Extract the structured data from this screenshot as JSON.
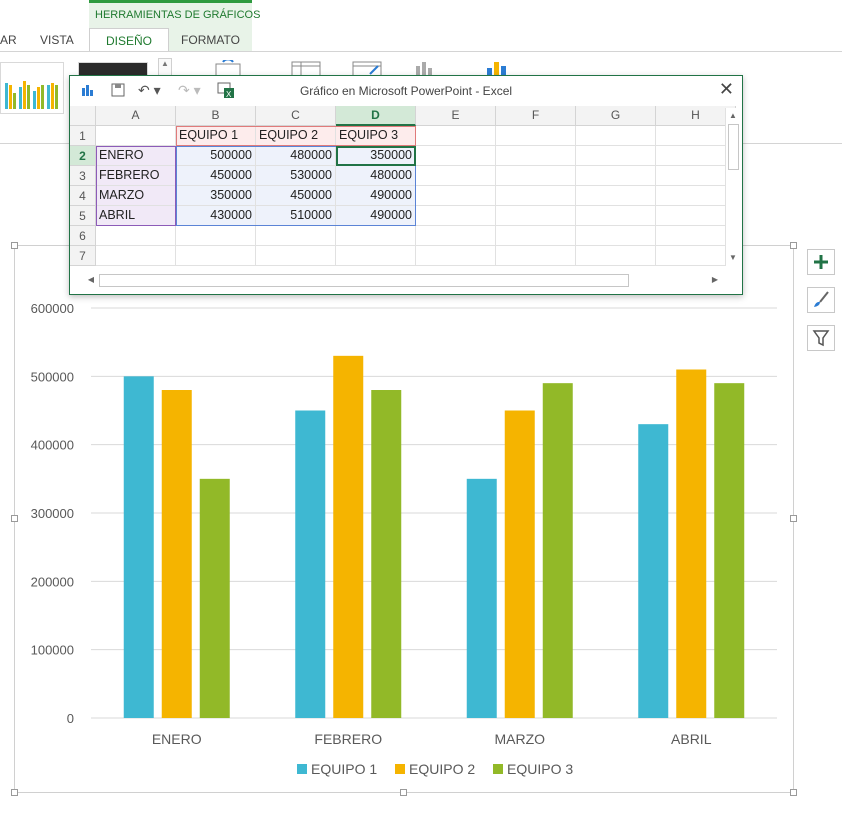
{
  "ribbon": {
    "tools_banner": "HERRAMIENTAS DE GRÁFICOS",
    "tabs": [
      {
        "label": "AR"
      },
      {
        "label": "VISTA"
      },
      {
        "label": "DISEÑO"
      },
      {
        "label": "FORMATO"
      }
    ]
  },
  "excel": {
    "title": "Gráfico en Microsoft PowerPoint - Excel",
    "close_label": "✕",
    "columns": [
      "A",
      "B",
      "C",
      "D",
      "E",
      "F",
      "G",
      "H"
    ],
    "rows": [
      "1",
      "2",
      "3",
      "4",
      "5",
      "6",
      "7"
    ],
    "selected_column": "D",
    "selected_row": "2",
    "cells": [
      [
        "",
        "EQUIPO 1",
        "EQUIPO 2",
        "EQUIPO 3"
      ],
      [
        "ENERO",
        "500000",
        "480000",
        "350000"
      ],
      [
        "FEBRERO",
        "450000",
        "530000",
        "480000"
      ],
      [
        "MARZO",
        "350000",
        "450000",
        "490000"
      ],
      [
        "ABRIL",
        "430000",
        "510000",
        "490000"
      ]
    ]
  },
  "chart_data": {
    "type": "bar",
    "categories": [
      "ENERO",
      "FEBRERO",
      "MARZO",
      "ABRIL"
    ],
    "series": [
      {
        "name": "EQUIPO 1",
        "color": "#3eb8d2",
        "values": [
          500000,
          450000,
          350000,
          430000
        ]
      },
      {
        "name": "EQUIPO 2",
        "color": "#f5b400",
        "values": [
          480000,
          530000,
          450000,
          510000
        ]
      },
      {
        "name": "EQUIPO 3",
        "color": "#92b928",
        "values": [
          350000,
          480000,
          490000,
          490000
        ]
      }
    ],
    "ylim": [
      0,
      600000
    ],
    "yticks": [
      "0",
      "100000",
      "200000",
      "300000",
      "400000",
      "500000",
      "600000"
    ],
    "grid": true,
    "legend": "bottom"
  },
  "side_buttons": [
    {
      "icon": "plus-icon"
    },
    {
      "icon": "brush-icon"
    },
    {
      "icon": "filter-icon"
    }
  ]
}
